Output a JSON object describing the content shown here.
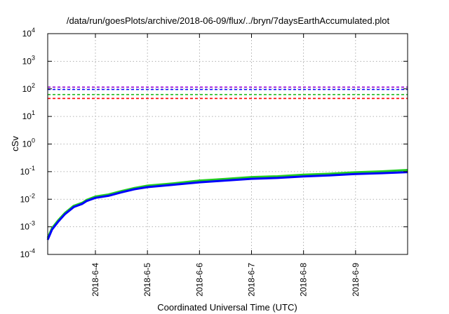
{
  "chart_data": {
    "type": "line",
    "title": "/data/run/goesPlots/archive/2018-06-09/flux/../bryn/7daysEarthAccumulated.plot",
    "xlabel": "Coordinated Universal Time (UTC)",
    "ylabel": "cSv",
    "y_scale": "log",
    "ylim": [
      0.0001,
      10000
    ],
    "y_ticks": [
      {
        "value": 0.0001,
        "base": "10",
        "exp": "-4"
      },
      {
        "value": 0.001,
        "base": "10",
        "exp": "-3"
      },
      {
        "value": 0.01,
        "base": "10",
        "exp": "-2"
      },
      {
        "value": 0.1,
        "base": "10",
        "exp": "-1"
      },
      {
        "value": 1,
        "base": "10",
        "exp": "0"
      },
      {
        "value": 10,
        "base": "10",
        "exp": "1"
      },
      {
        "value": 100,
        "base": "10",
        "exp": "2"
      },
      {
        "value": 1000,
        "base": "10",
        "exp": "3"
      },
      {
        "value": 10000,
        "base": "10",
        "exp": "4"
      }
    ],
    "xlim": [
      "2018-06-03 02:00",
      "2018-06-10 00:00"
    ],
    "x_ticks": [
      "2018-6-4",
      "2018-6-5",
      "2018-6-6",
      "2018-6-7",
      "2018-6-8",
      "2018-6-9"
    ],
    "grid": true,
    "reference_lines": [
      {
        "value": 115,
        "color": "#9400d3",
        "style": "dashed"
      },
      {
        "value": 95,
        "color": "#0000ff",
        "style": "dashed"
      },
      {
        "value": 62,
        "color": "#22bb22",
        "style": "dashed"
      },
      {
        "value": 45,
        "color": "#ff0000",
        "style": "dashed"
      }
    ],
    "series": [
      {
        "color": "#22cc22",
        "width": 3,
        "x": [
          "2018-06-03 02:00",
          "2018-06-03 04:00",
          "2018-06-03 07:00",
          "2018-06-03 10:00",
          "2018-06-03 14:00",
          "2018-06-03 18:00",
          "2018-06-03 20:00",
          "2018-06-04 00:00",
          "2018-06-04 06:00",
          "2018-06-04 12:00",
          "2018-06-04 18:00",
          "2018-06-05 00:00",
          "2018-06-05 12:00",
          "2018-06-06 00:00",
          "2018-06-06 12:00",
          "2018-06-07 00:00",
          "2018-06-07 12:00",
          "2018-06-08 00:00",
          "2018-06-08 12:00",
          "2018-06-09 00:00",
          "2018-06-09 12:00",
          "2018-06-10 00:00"
        ],
        "y": [
          0.0004,
          0.0009,
          0.0018,
          0.0032,
          0.0058,
          0.0075,
          0.0095,
          0.0125,
          0.0148,
          0.0198,
          0.0255,
          0.031,
          0.0375,
          0.0475,
          0.0545,
          0.0635,
          0.068,
          0.077,
          0.084,
          0.095,
          0.102,
          0.115
        ]
      },
      {
        "color": "#0000ff",
        "width": 3,
        "x": [
          "2018-06-03 02:00",
          "2018-06-03 04:00",
          "2018-06-03 07:00",
          "2018-06-03 10:00",
          "2018-06-03 14:00",
          "2018-06-03 18:00",
          "2018-06-03 20:00",
          "2018-06-04 00:00",
          "2018-06-04 06:00",
          "2018-06-04 12:00",
          "2018-06-04 18:00",
          "2018-06-05 00:00",
          "2018-06-05 12:00",
          "2018-06-06 00:00",
          "2018-06-06 12:00",
          "2018-06-07 00:00",
          "2018-06-07 12:00",
          "2018-06-08 00:00",
          "2018-06-08 12:00",
          "2018-06-09 00:00",
          "2018-06-09 12:00",
          "2018-06-10 00:00"
        ],
        "y": [
          0.00034,
          0.0008,
          0.0016,
          0.0029,
          0.0052,
          0.0068,
          0.0086,
          0.0112,
          0.0133,
          0.0178,
          0.023,
          0.0275,
          0.0335,
          0.041,
          0.0475,
          0.055,
          0.059,
          0.067,
          0.073,
          0.082,
          0.088,
          0.096
        ]
      }
    ]
  }
}
